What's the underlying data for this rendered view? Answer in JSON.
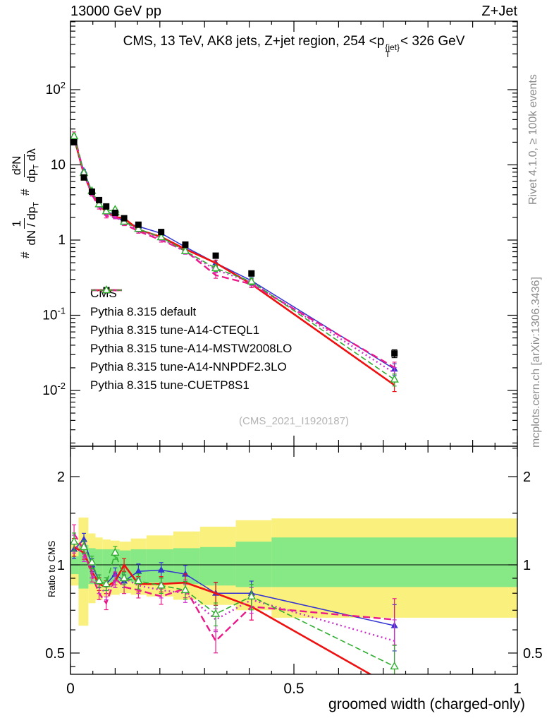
{
  "header": {
    "left": "13000 GeV pp",
    "right": "Z+Jet"
  },
  "panel_title": {
    "prefix": "CMS, 13 TeV, AK8 jets, Z+jet region, 254 <p",
    "sup": "{jet}",
    "sub": "T",
    "suffix": "< 326 GeV"
  },
  "side_notes": {
    "rivet": "Rivet 4.1.0, ≥ 100k events",
    "mcplots": "mcplots.cern.ch [arXiv:1306.3436]"
  },
  "watermark": "(CMS_2021_I1920187)",
  "ylabel": {
    "hash1": "#",
    "f1num": "1",
    "f1den": "dN / dp",
    "f1den_sub": "T",
    "hash2": "#",
    "f2num": "d²N",
    "f2den_a": "dp",
    "f2den_sub": "T",
    "f2den_b": " dλ"
  },
  "ratio_ylabel": "Ratio to CMS",
  "xlabel": "groomed width (charged-only)",
  "chart_data": {
    "type": "line",
    "x_axis_label": "groomed width (charged-only)",
    "x": [
      0.008,
      0.03,
      0.048,
      0.064,
      0.08,
      0.1,
      0.12,
      0.152,
      0.203,
      0.257,
      0.325,
      0.405,
      0.725
    ],
    "cms": {
      "label": "CMS",
      "color": "#000000",
      "values": [
        20,
        6.8,
        4.4,
        3.4,
        2.8,
        2.3,
        1.95,
        1.6,
        1.28,
        0.87,
        0.62,
        0.36,
        0.031
      ],
      "rel_err": [
        0.05,
        0.04,
        0.04,
        0.04,
        0.04,
        0.04,
        0.04,
        0.05,
        0.05,
        0.06,
        0.07,
        0.08,
        0.12
      ]
    },
    "series": [
      {
        "name": "Pythia 8.315 default",
        "color": "#3434d3",
        "dash": "",
        "width": 1.5,
        "marker": "triangle-filled",
        "ratio": [
          1.13,
          1.22,
          1.0,
          0.88,
          0.86,
          0.93,
          0.88,
          0.95,
          0.96,
          0.93,
          0.8,
          0.8,
          0.62
        ]
      },
      {
        "name": "Pythia 8.315 tune-A14-CTEQL1",
        "color": "#ee1111",
        "dash": "",
        "width": 2.6,
        "marker": "none",
        "ratio": [
          1.15,
          1.1,
          0.95,
          0.86,
          0.84,
          0.88,
          1.0,
          0.86,
          0.86,
          0.87,
          0.8,
          0.72,
          0.38
        ]
      },
      {
        "name": "Pythia 8.315 tune-A14-MSTW2008LO",
        "color": "#ea1889",
        "dash": "10 5",
        "width": 2.4,
        "marker": "none",
        "ratio": [
          1.28,
          1.12,
          0.92,
          0.8,
          0.74,
          0.9,
          0.84,
          0.82,
          0.78,
          0.83,
          0.55,
          0.72,
          0.65
        ]
      },
      {
        "name": "Pythia 8.315 tune-A14-NNPDF2.3LO",
        "color": "#cc2fcc",
        "dash": "2 4",
        "width": 2.4,
        "marker": "none",
        "ratio": [
          1.18,
          1.08,
          0.95,
          0.84,
          0.8,
          0.88,
          0.9,
          0.85,
          0.82,
          0.8,
          0.65,
          0.76,
          0.55
        ]
      },
      {
        "name": "Pythia 8.315 tune-CUETP8S1",
        "color": "#2fae2f",
        "dash": "8 4",
        "width": 1.6,
        "marker": "triangle-open",
        "ratio": [
          1.2,
          1.15,
          1.02,
          0.88,
          0.86,
          1.1,
          0.9,
          0.88,
          0.85,
          0.82,
          0.68,
          0.78,
          0.45
        ]
      }
    ],
    "mc_rel_err": [
      0.07,
      0.05,
      0.05,
      0.05,
      0.05,
      0.05,
      0.05,
      0.06,
      0.06,
      0.07,
      0.09,
      0.1,
      0.18
    ],
    "bands": {
      "yellow": "#faf07d",
      "green": "#86e986",
      "edges": [
        0,
        0.018,
        0.04,
        0.056,
        0.072,
        0.09,
        0.11,
        0.135,
        0.17,
        0.23,
        0.29,
        0.37,
        0.45,
        1.0
      ],
      "yellow_lo": [
        0.85,
        0.62,
        0.74,
        0.76,
        0.78,
        0.79,
        0.8,
        0.79,
        0.78,
        0.76,
        0.73,
        0.7,
        0.66
      ],
      "yellow_hi": [
        1.17,
        1.45,
        1.28,
        1.24,
        1.22,
        1.21,
        1.2,
        1.23,
        1.26,
        1.3,
        1.35,
        1.42,
        1.44
      ],
      "green_lo": [
        0.93,
        0.83,
        0.86,
        0.87,
        0.87,
        0.87,
        0.88,
        0.87,
        0.87,
        0.86,
        0.85,
        0.84,
        0.84
      ],
      "green_hi": [
        1.07,
        1.17,
        1.14,
        1.13,
        1.13,
        1.13,
        1.12,
        1.13,
        1.13,
        1.14,
        1.15,
        1.2,
        1.24
      ]
    },
    "axes": {
      "x": {
        "min": 0,
        "max": 1,
        "major": [
          0,
          0.5,
          1
        ],
        "labels": [
          "0",
          "0.5",
          "1"
        ]
      },
      "y_main": {
        "log": true,
        "label_exponents": [
          2,
          1,
          0,
          -1,
          -2
        ]
      },
      "y_ratio": {
        "log": true,
        "major": [
          2,
          1,
          0.5
        ],
        "labels": [
          "2",
          "1",
          "0.5"
        ],
        "minor": [
          0.45,
          0.6,
          0.7,
          0.8,
          0.9,
          1.5,
          2.5
        ]
      }
    }
  }
}
